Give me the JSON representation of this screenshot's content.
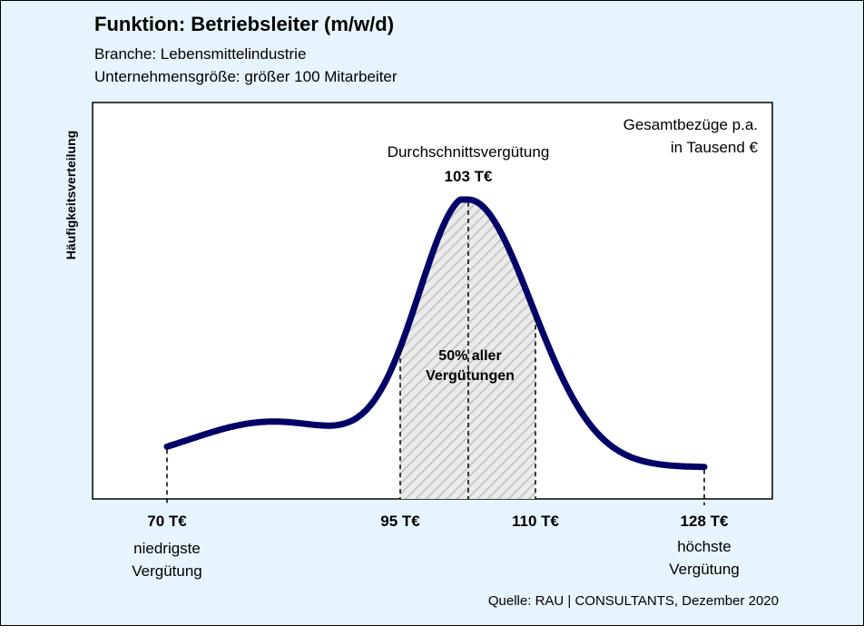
{
  "title": "Funktion: Betriebsleiter (m/w/d)",
  "subtitle_lines": [
    "Branche: Lebensmittelindustrie",
    "Unternehmensgröße: größer 100 Mitarbeiter"
  ],
  "y_axis_label": "Häufigkeitsverteilung",
  "unit_note": [
    "Gesamtbezüge p.a.",
    "in Tausend €"
  ],
  "average": {
    "label": "Durchschnittsvergütung",
    "value_label": "103 T€"
  },
  "band_label": [
    "50% aller",
    "Vergütungen"
  ],
  "source": "Quelle: RAU | CONSULTANTS, Dezember 2020",
  "colors": {
    "background": "#e8f4fd",
    "curve": "#000066",
    "plot_area": "#ffffff",
    "hatch": "#c8c8c8"
  },
  "chart_data": {
    "type": "area",
    "x_unit": "T€",
    "min": {
      "value": 70,
      "label": "70 T€",
      "caption": [
        "niedrigste",
        "Vergütung"
      ]
    },
    "q1": {
      "value": 95,
      "label": "95 T€"
    },
    "mean": {
      "value": 103,
      "label": "103 T€"
    },
    "q3": {
      "value": 110,
      "label": "110 T€"
    },
    "max": {
      "value": 128,
      "label": "128 T€",
      "caption": [
        "höchste",
        "Vergütung"
      ]
    },
    "shaded_band": [
      95,
      110
    ],
    "grid": false,
    "legend": "none"
  }
}
